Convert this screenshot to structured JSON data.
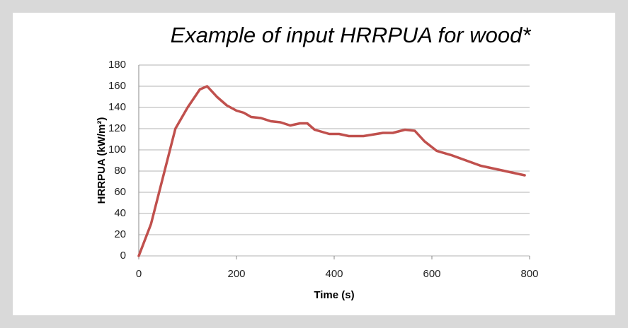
{
  "chart_data": {
    "type": "line",
    "title": "Example of input HRRPUA for wood*",
    "x_label": "Time (s)",
    "y_label": "HRRPUA (kW/m²)",
    "x": [
      0,
      25,
      50,
      75,
      100,
      125,
      140,
      160,
      180,
      200,
      215,
      230,
      250,
      270,
      290,
      310,
      330,
      345,
      360,
      390,
      410,
      430,
      460,
      500,
      520,
      545,
      565,
      585,
      610,
      640,
      670,
      700,
      740,
      770,
      790
    ],
    "values": [
      0,
      30,
      75,
      120,
      140,
      157,
      160,
      150,
      142,
      137,
      135,
      131,
      130,
      127,
      126,
      123,
      125,
      125,
      119,
      115,
      115,
      113,
      113,
      116,
      116,
      119,
      118,
      108,
      99,
      95,
      90,
      85,
      81,
      78,
      76
    ],
    "color": "#c0504d",
    "xlim": [
      0,
      800
    ],
    "xticks": [
      0,
      200,
      400,
      600,
      800
    ],
    "ylim": [
      0,
      180
    ],
    "yticks": [
      0,
      20,
      40,
      60,
      80,
      100,
      120,
      140,
      160,
      180
    ],
    "grid": true
  }
}
